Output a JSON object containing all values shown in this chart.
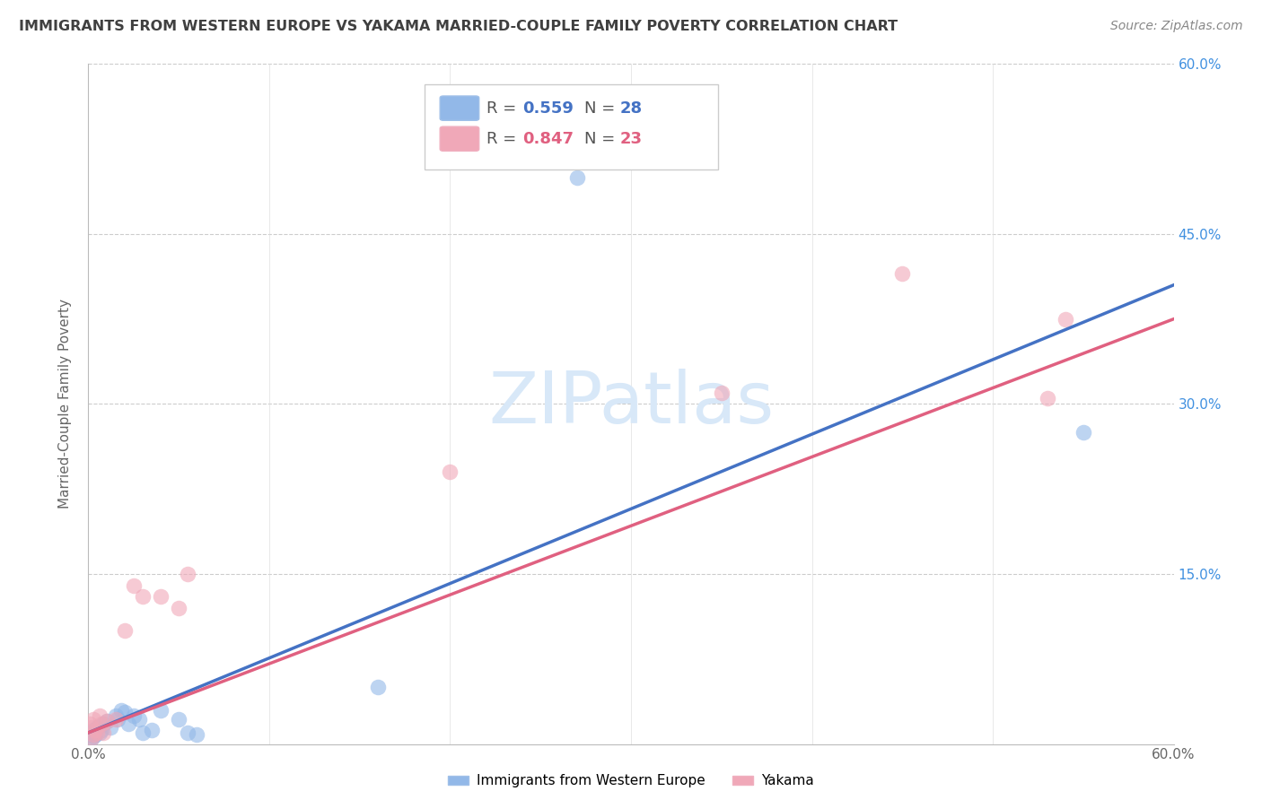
{
  "title": "IMMIGRANTS FROM WESTERN EUROPE VS YAKAMA MARRIED-COUPLE FAMILY POVERTY CORRELATION CHART",
  "source": "Source: ZipAtlas.com",
  "ylabel": "Married-Couple Family Poverty",
  "xlim": [
    0.0,
    0.6
  ],
  "ylim": [
    0.0,
    0.6
  ],
  "watermark": "ZIPatlas",
  "R_blue": 0.559,
  "N_blue": 28,
  "R_pink": 0.847,
  "N_pink": 23,
  "blue_scatter": [
    [
      0.001,
      0.008
    ],
    [
      0.002,
      0.005
    ],
    [
      0.002,
      0.01
    ],
    [
      0.003,
      0.007
    ],
    [
      0.003,
      0.012
    ],
    [
      0.004,
      0.008
    ],
    [
      0.005,
      0.015
    ],
    [
      0.006,
      0.01
    ],
    [
      0.007,
      0.012
    ],
    [
      0.008,
      0.018
    ],
    [
      0.01,
      0.02
    ],
    [
      0.012,
      0.015
    ],
    [
      0.015,
      0.025
    ],
    [
      0.016,
      0.022
    ],
    [
      0.018,
      0.03
    ],
    [
      0.02,
      0.028
    ],
    [
      0.022,
      0.018
    ],
    [
      0.025,
      0.025
    ],
    [
      0.028,
      0.022
    ],
    [
      0.03,
      0.01
    ],
    [
      0.035,
      0.012
    ],
    [
      0.04,
      0.03
    ],
    [
      0.05,
      0.022
    ],
    [
      0.055,
      0.01
    ],
    [
      0.06,
      0.008
    ],
    [
      0.16,
      0.05
    ],
    [
      0.27,
      0.5
    ],
    [
      0.55,
      0.275
    ]
  ],
  "pink_scatter": [
    [
      0.001,
      0.018
    ],
    [
      0.002,
      0.005
    ],
    [
      0.002,
      0.015
    ],
    [
      0.003,
      0.008
    ],
    [
      0.003,
      0.022
    ],
    [
      0.004,
      0.012
    ],
    [
      0.005,
      0.01
    ],
    [
      0.006,
      0.025
    ],
    [
      0.007,
      0.018
    ],
    [
      0.008,
      0.01
    ],
    [
      0.01,
      0.02
    ],
    [
      0.015,
      0.022
    ],
    [
      0.02,
      0.1
    ],
    [
      0.025,
      0.14
    ],
    [
      0.03,
      0.13
    ],
    [
      0.04,
      0.13
    ],
    [
      0.05,
      0.12
    ],
    [
      0.055,
      0.15
    ],
    [
      0.2,
      0.24
    ],
    [
      0.35,
      0.31
    ],
    [
      0.45,
      0.415
    ],
    [
      0.53,
      0.305
    ],
    [
      0.54,
      0.375
    ]
  ],
  "blue_color": "#92b8e8",
  "pink_color": "#f0a8b8",
  "blue_line_color": "#4472c4",
  "pink_line_color": "#e06080",
  "background_color": "#ffffff",
  "title_color": "#404040",
  "right_axis_color": "#4090e0",
  "watermark_color": "#d8e8f8"
}
